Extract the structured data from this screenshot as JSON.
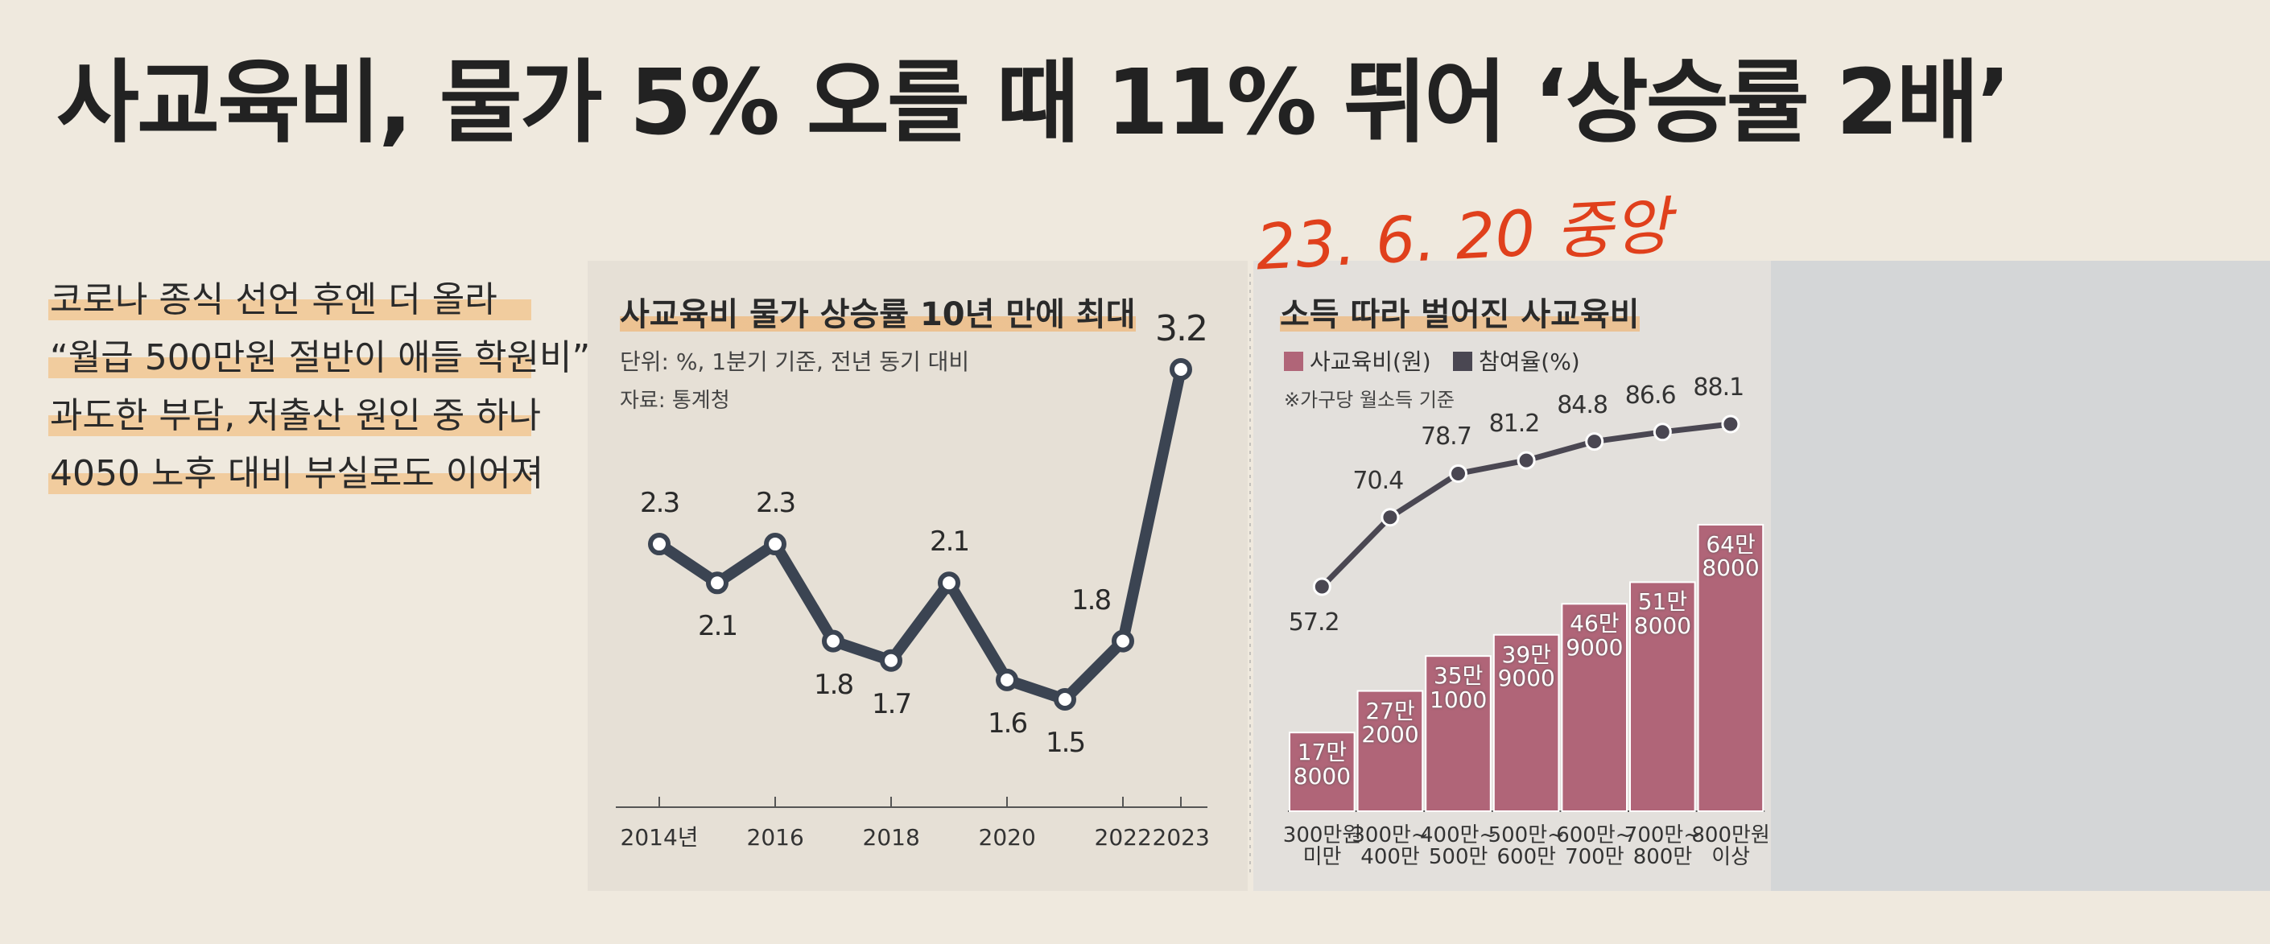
{
  "headline": "사교육비, 물가 5% 오를 때 11% 뛰어 ‘상승률 2배’",
  "subheads": [
    "코로나 종식 선언 후엔 더 올라",
    "“월급 500만원 절반이 애들 학원비”",
    "과도한 부담, 저출산 원인 중 하나",
    "4050 노후 대비 부실로도 이어져"
  ],
  "handwritten_note": "23. 6. 20 중앙",
  "chart_data": [
    {
      "type": "line",
      "title": "사교육비 물가 상승률 10년 만에 최대",
      "subtitle": "단위: %, 1분기 기준, 전년 동기 대비",
      "source": "자료: 통계청",
      "categories": [
        "2014년",
        null,
        "2016",
        null,
        "2018",
        null,
        "2020",
        null,
        "2022",
        "2023"
      ],
      "values": [
        2.3,
        2.1,
        2.3,
        1.8,
        1.7,
        2.1,
        1.6,
        1.5,
        1.8,
        3.2
      ],
      "color": "#3b4452"
    },
    {
      "type": "bar",
      "title": "소득 따라 벌어진 사교육비",
      "note": "※가구당 월소득 기준",
      "categories": [
        "300만원\n미만",
        "300만~\n400만",
        "400만~\n500만",
        "500만~\n600만",
        "600만~\n700만",
        "700만~\n800만",
        "800만원\n이상"
      ],
      "series": [
        {
          "name": "사교육비(원)",
          "color": "#b06578",
          "values": [
            178000,
            272000,
            351000,
            399000,
            469000,
            518000,
            648000
          ],
          "value_labels": [
            "17만\n8000",
            "27만\n2000",
            "35만\n1000",
            "39만\n9000",
            "46만\n9000",
            "51만\n8000",
            "64만\n8000"
          ]
        },
        {
          "name": "참여율(%)",
          "type": "line",
          "color": "#4a4752",
          "values": [
            57.2,
            70.4,
            78.7,
            81.2,
            84.8,
            86.6,
            88.1
          ]
        }
      ]
    }
  ]
}
